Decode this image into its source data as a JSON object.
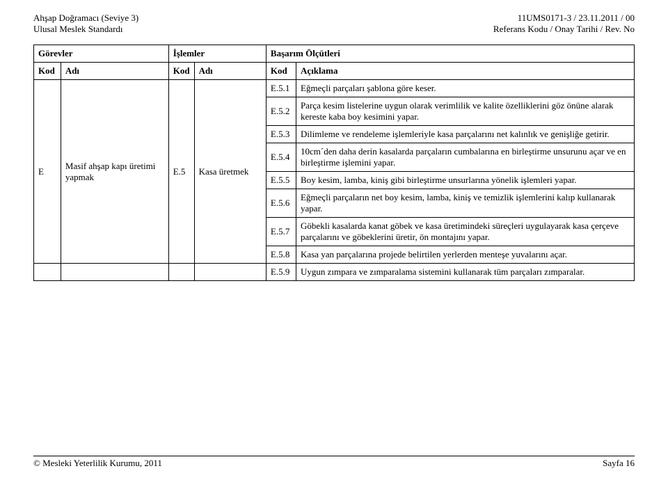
{
  "header": {
    "left_line_1": "Ahşap Doğramacı (Seviye 3)",
    "left_line_2": "Ulusal Meslek Standardı",
    "right_line_1": "11UMS0171-3 / 23.11.2011 / 00",
    "right_line_2": "Referans Kodu / Onay Tarihi / Rev. No"
  },
  "table": {
    "group_headers": {
      "gorevler": "Görevler",
      "islemler": "İşlemler",
      "basarim": "Başarım Ölçütleri"
    },
    "sub_headers": {
      "kod": "Kod",
      "adi": "Adı",
      "aciklama": "Açıklama"
    },
    "gorev_kod": "E",
    "gorev_adi": "Masif ahşap kapı üretimi yapmak",
    "islem_kod": "E.5",
    "islem_adi": "Kasa üretmek",
    "rows": [
      {
        "k": "E.5.1",
        "d": "Eğmeçli parçaları şablona göre keser."
      },
      {
        "k": "E.5.2",
        "d": "Parça kesim listelerine uygun olarak verimlilik ve kalite özelliklerini göz önüne alarak kereste kaba boy kesimini yapar."
      },
      {
        "k": "E.5.3",
        "d": "Dilimleme ve rendeleme işlemleriyle kasa parçalarını net kalınlık ve genişliğe getirir."
      },
      {
        "k": "E.5.4",
        "d": "10cm´den daha derin kasalarda parçaların cumbalarına en birleştirme unsurunu açar ve en birleştirme işlemini yapar."
      },
      {
        "k": "E.5.5",
        "d": "Boy kesim, lamba, kiniş gibi birleştirme unsurlarına yönelik işlemleri yapar."
      },
      {
        "k": "E.5.6",
        "d": "Eğmeçli parçaların net boy kesim, lamba, kiniş ve temizlik işlemlerini kalıp kullanarak yapar."
      },
      {
        "k": "E.5.7",
        "d": "Göbekli kasalarda kanat göbek ve kasa üretimindeki süreçleri uygulayarak kasa çerçeve parçalarını ve göbeklerini üretir, ön montajını yapar."
      },
      {
        "k": "E.5.8",
        "d": "Kasa yan parçalarına projede belirtilen yerlerden menteşe yuvalarını açar."
      }
    ],
    "row_after": {
      "k": "E.5.9",
      "d": "Uygun zımpara ve zımparalama sistemini kullanarak tüm parçaları zımparalar."
    }
  },
  "footer": {
    "left": "© Mesleki Yeterlilik Kurumu, 2011",
    "right": "Sayfa 16"
  }
}
